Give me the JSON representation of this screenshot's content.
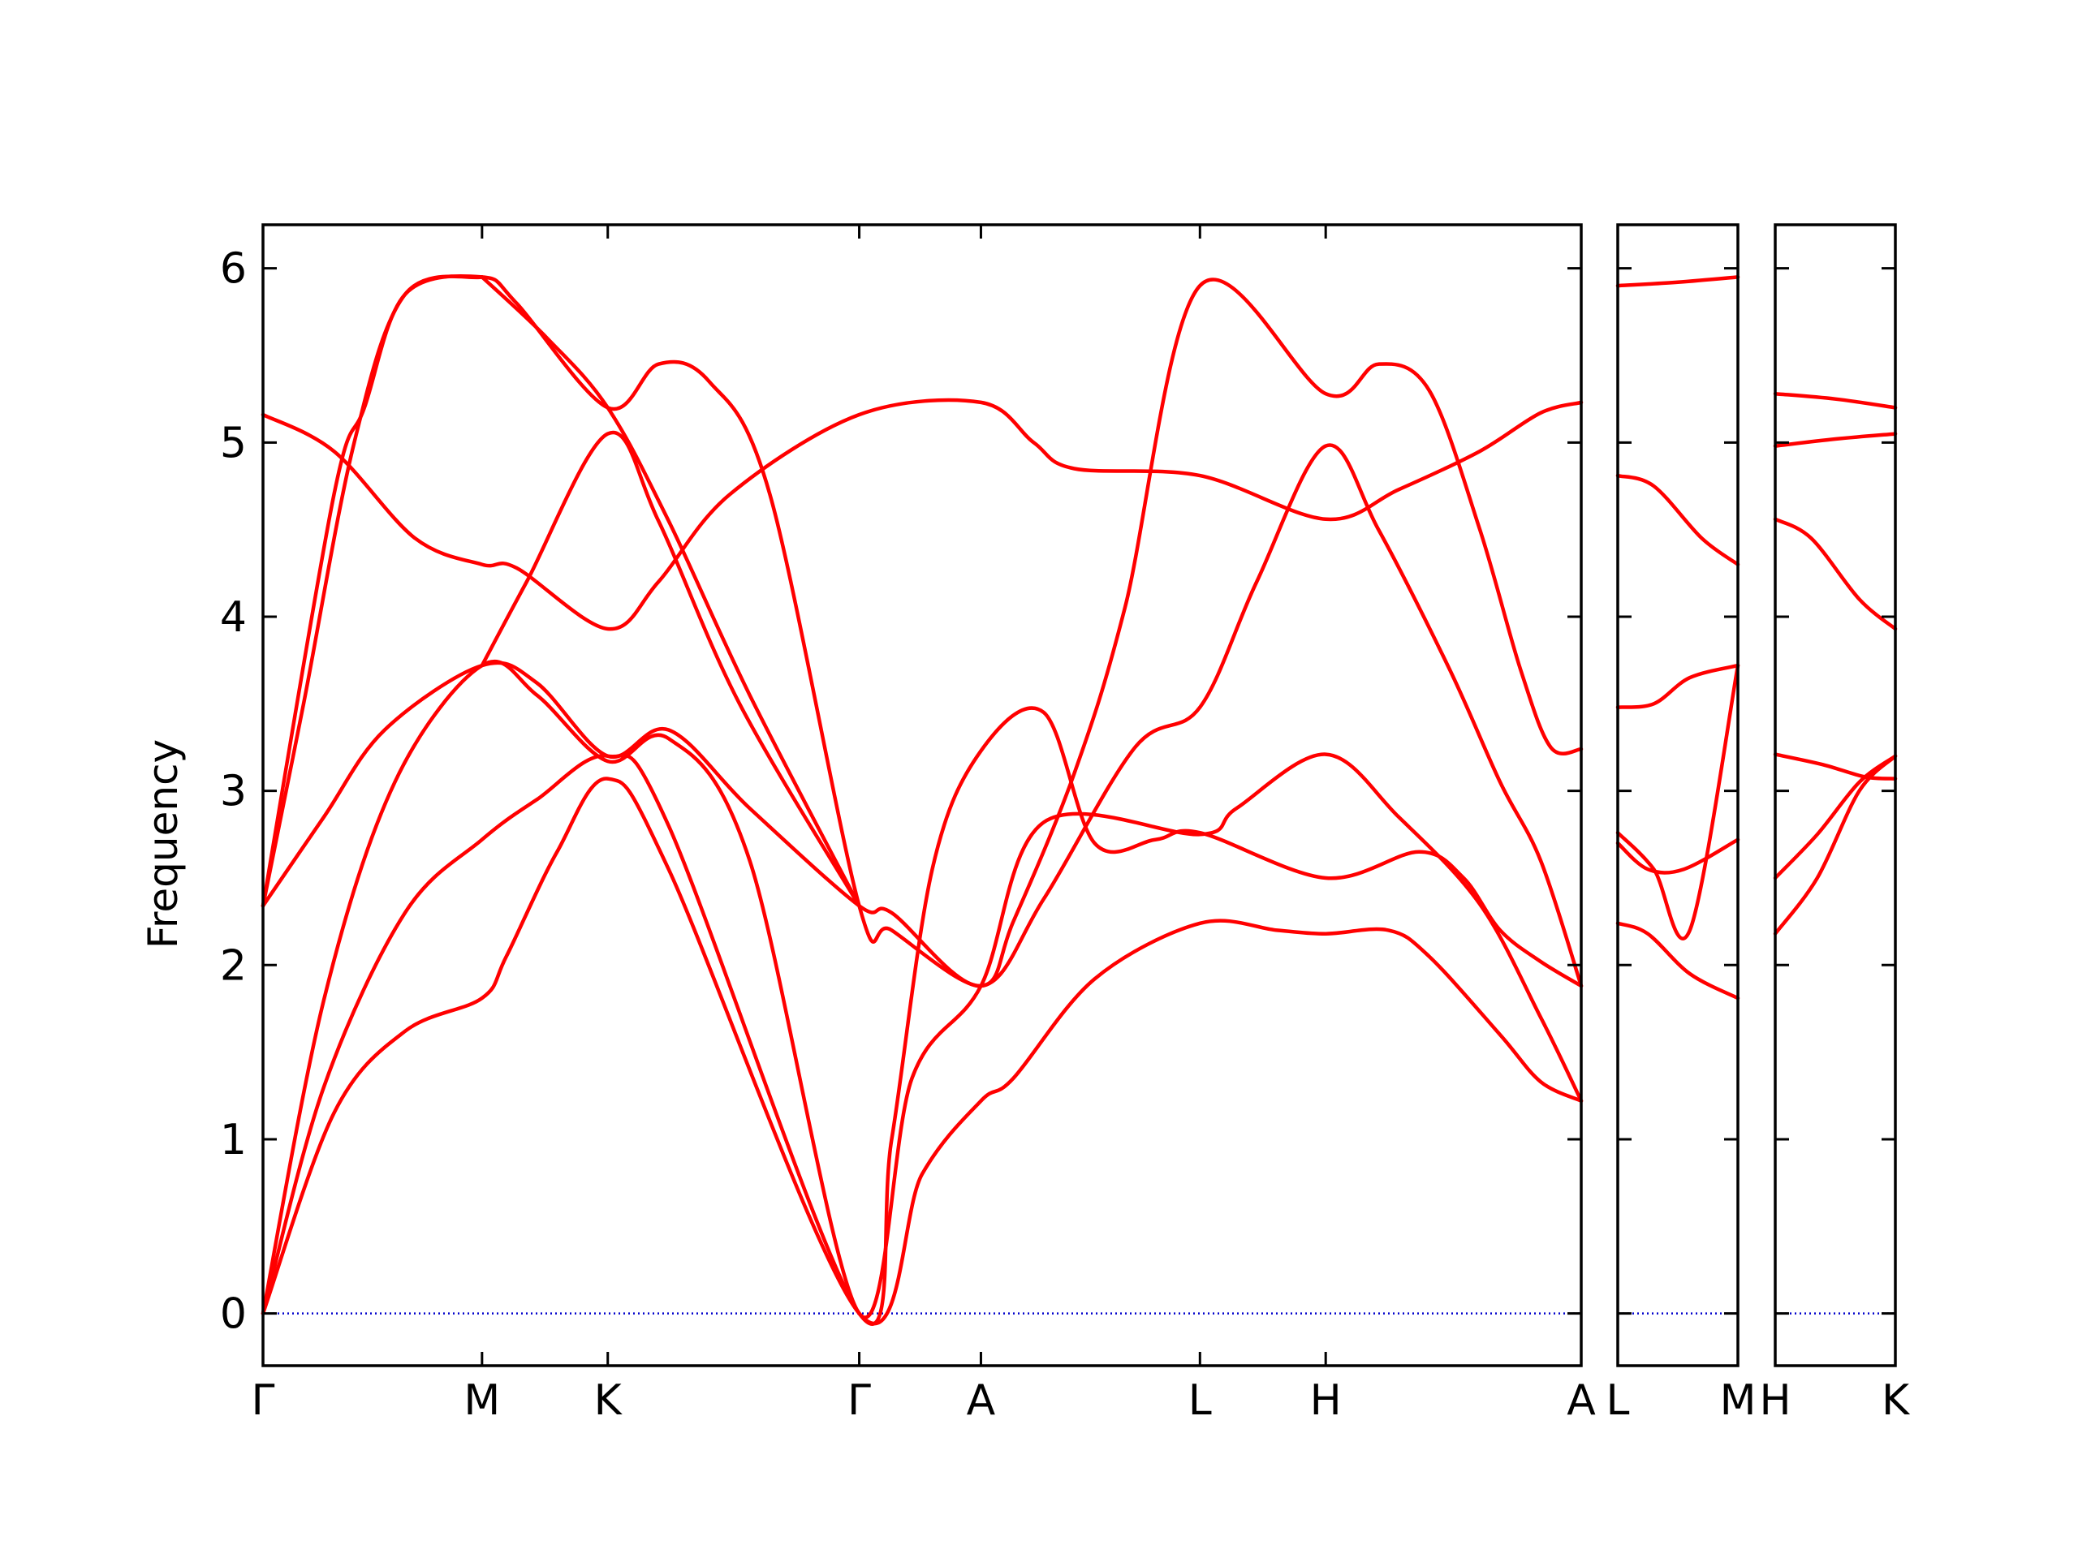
{
  "chart_data": {
    "type": "line",
    "title": "",
    "ylabel": "Frequency",
    "ylim": [
      -0.3,
      6.25
    ],
    "yticks": [
      "0",
      "1",
      "2",
      "3",
      "4",
      "5",
      "6"
    ],
    "zero_line_color": "#0000cc",
    "band_color": "#ff0000",
    "panels": [
      {
        "path": [
          "Γ",
          "M",
          "K",
          "Γ",
          "A",
          "L",
          "H",
          "A"
        ],
        "labels": [
          "Γ",
          "M",
          "K",
          "Γ",
          "A",
          "L",
          "H",
          "A"
        ],
        "xlim": [
          0,
          6.5
        ],
        "ticks": [
          0,
          1.08,
          1.7,
          2.94,
          3.54,
          4.62,
          5.24,
          6.5
        ],
        "bands": [
          {
            "name": "band-1",
            "points": [
              [
                0,
                0
              ],
              [
                0.35,
                1.15
              ],
              [
                0.7,
                1.62
              ],
              [
                1.08,
                1.81
              ],
              [
                1.2,
                2.05
              ],
              [
                1.45,
                2.65
              ],
              [
                1.7,
                3.07
              ],
              [
                2.0,
                2.55
              ],
              [
                2.94,
                0
              ],
              [
                3.25,
                0.8
              ],
              [
                3.54,
                1.22
              ],
              [
                3.7,
                1.35
              ],
              [
                4.1,
                1.92
              ],
              [
                4.62,
                2.24
              ],
              [
                5.0,
                2.2
              ],
              [
                5.24,
                2.18
              ],
              [
                5.55,
                2.2
              ],
              [
                5.75,
                2.05
              ],
              [
                6.1,
                1.6
              ],
              [
                6.3,
                1.33
              ],
              [
                6.5,
                1.22
              ]
            ]
          },
          {
            "name": "band-2",
            "points": [
              [
                0,
                0
              ],
              [
                0.3,
                1.3
              ],
              [
                0.7,
                2.3
              ],
              [
                1.08,
                2.72
              ],
              [
                1.35,
                2.95
              ],
              [
                1.7,
                3.2
              ],
              [
                2.0,
                2.8
              ],
              [
                2.94,
                0
              ],
              [
                3.1,
                1.0
              ],
              [
                3.3,
                2.55
              ],
              [
                3.54,
                3.23
              ],
              [
                3.85,
                3.45
              ],
              [
                4.1,
                2.7
              ],
              [
                4.4,
                2.72
              ],
              [
                4.62,
                2.76
              ],
              [
                5.24,
                2.5
              ],
              [
                5.7,
                2.65
              ],
              [
                5.92,
                2.5
              ],
              [
                6.1,
                2.2
              ],
              [
                6.3,
                2.02
              ],
              [
                6.5,
                1.88
              ]
            ]
          },
          {
            "name": "band-3",
            "points": [
              [
                0,
                0
              ],
              [
                0.3,
                1.8
              ],
              [
                0.65,
                3.05
              ],
              [
                1.08,
                3.72
              ],
              [
                1.35,
                3.55
              ],
              [
                1.7,
                3.17
              ],
              [
                2.0,
                3.3
              ],
              [
                2.4,
                2.6
              ],
              [
                2.94,
                0
              ],
              [
                3.2,
                1.35
              ],
              [
                3.54,
                1.88
              ],
              [
                3.85,
                2.82
              ],
              [
                4.62,
                2.75
              ],
              [
                4.8,
                2.9
              ],
              [
                5.24,
                3.21
              ],
              [
                5.6,
                2.85
              ],
              [
                6.0,
                2.35
              ],
              [
                6.3,
                1.7
              ],
              [
                6.5,
                1.22
              ]
            ]
          },
          {
            "name": "band-4",
            "points": [
              [
                0,
                2.34
              ],
              [
                0.3,
                2.85
              ],
              [
                0.6,
                3.35
              ],
              [
                1.08,
                3.72
              ],
              [
                1.35,
                3.62
              ],
              [
                1.7,
                3.2
              ],
              [
                2.0,
                3.35
              ],
              [
                2.4,
                2.9
              ],
              [
                2.94,
                2.34
              ],
              [
                3.1,
                2.3
              ],
              [
                3.54,
                1.88
              ],
              [
                3.85,
                2.38
              ],
              [
                4.3,
                3.25
              ],
              [
                4.62,
                3.48
              ],
              [
                4.9,
                4.2
              ],
              [
                5.24,
                4.98
              ],
              [
                5.5,
                4.5
              ],
              [
                5.85,
                3.7
              ],
              [
                6.1,
                3.05
              ],
              [
                6.3,
                2.6
              ],
              [
                6.5,
                1.88
              ]
            ]
          },
          {
            "name": "band-5",
            "points": [
              [
                0,
                2.34
              ],
              [
                0.35,
                4.7
              ],
              [
                0.5,
                5.2
              ],
              [
                0.7,
                5.85
              ],
              [
                1.08,
                5.95
              ],
              [
                1.25,
                5.8
              ],
              [
                1.7,
                5.2
              ],
              [
                1.95,
                5.45
              ],
              [
                2.2,
                5.35
              ],
              [
                2.5,
                4.7
              ],
              [
                2.94,
                2.34
              ],
              [
                3.1,
                2.2
              ],
              [
                3.54,
                1.88
              ],
              [
                3.7,
                2.25
              ],
              [
                4.0,
                3.1
              ],
              [
                4.25,
                4.05
              ],
              [
                4.62,
                5.9
              ],
              [
                5.24,
                5.28
              ],
              [
                5.5,
                5.45
              ],
              [
                5.75,
                5.3
              ],
              [
                6.0,
                4.5
              ],
              [
                6.2,
                3.7
              ],
              [
                6.35,
                3.25
              ],
              [
                6.5,
                3.24
              ]
            ]
          },
          {
            "name": "band-6",
            "points": [
              [
                0,
                5.16
              ],
              [
                0.35,
                4.95
              ],
              [
                0.75,
                4.45
              ],
              [
                1.08,
                4.3
              ],
              [
                1.25,
                4.28
              ],
              [
                1.7,
                3.93
              ],
              [
                1.95,
                4.2
              ],
              [
                2.3,
                4.7
              ],
              [
                2.94,
                5.16
              ],
              [
                3.54,
                5.23
              ],
              [
                3.8,
                5.0
              ],
              [
                4.0,
                4.85
              ],
              [
                4.62,
                4.81
              ],
              [
                5.24,
                4.56
              ],
              [
                5.6,
                4.73
              ],
              [
                6.0,
                4.95
              ],
              [
                6.3,
                5.17
              ],
              [
                6.5,
                5.23
              ]
            ]
          },
          {
            "name": "band-7",
            "points": [
              [
                0,
                2.34
              ],
              [
                0.2,
                3.5
              ],
              [
                0.45,
                5.0
              ],
              [
                0.7,
                5.85
              ],
              [
                1.08,
                5.95
              ]
            ]
          },
          {
            "name": "band-8",
            "points": [
              [
                1.08,
                5.95
              ],
              [
                1.4,
                5.6
              ],
              [
                1.7,
                5.2
              ],
              [
                2.0,
                4.55
              ],
              [
                2.4,
                3.55
              ],
              [
                2.94,
                2.34
              ]
            ]
          },
          {
            "name": "band-9",
            "points": [
              [
                1.08,
                3.72
              ],
              [
                1.3,
                4.2
              ],
              [
                1.7,
                5.05
              ],
              [
                1.95,
                4.55
              ],
              [
                2.35,
                3.5
              ],
              [
                2.94,
                2.34
              ]
            ]
          }
        ]
      },
      {
        "path": [
          "L",
          "M"
        ],
        "labels": [
          "L",
          "M"
        ],
        "xlim": [
          0,
          1
        ],
        "ticks": [
          0,
          1
        ],
        "bands": [
          {
            "name": "band-1",
            "points": [
              [
                0,
                2.24
              ],
              [
                0.25,
                2.18
              ],
              [
                0.6,
                1.95
              ],
              [
                1,
                1.81
              ]
            ]
          },
          {
            "name": "band-2",
            "points": [
              [
                0,
                2.7
              ],
              [
                0.25,
                2.55
              ],
              [
                0.55,
                2.55
              ],
              [
                1,
                2.72
              ]
            ]
          },
          {
            "name": "band-3",
            "points": [
              [
                0,
                2.76
              ],
              [
                0.3,
                2.55
              ],
              [
                0.6,
                2.2
              ],
              [
                1,
                3.72
              ]
            ]
          },
          {
            "name": "band-4",
            "points": [
              [
                0,
                3.48
              ],
              [
                0.3,
                3.5
              ],
              [
                0.6,
                3.65
              ],
              [
                1,
                3.72
              ]
            ]
          },
          {
            "name": "band-5",
            "points": [
              [
                0,
                4.81
              ],
              [
                0.3,
                4.75
              ],
              [
                0.7,
                4.45
              ],
              [
                1,
                4.3
              ]
            ]
          },
          {
            "name": "band-6",
            "points": [
              [
                0,
                5.9
              ],
              [
                0.5,
                5.92
              ],
              [
                1,
                5.95
              ]
            ]
          }
        ]
      },
      {
        "path": [
          "H",
          "K"
        ],
        "labels": [
          "H",
          "K"
        ],
        "xlim": [
          0,
          1
        ],
        "ticks": [
          0,
          1
        ],
        "bands": [
          {
            "name": "band-1",
            "points": [
              [
                0,
                2.18
              ],
              [
                0.35,
                2.5
              ],
              [
                0.7,
                3.0
              ],
              [
                1,
                3.2
              ]
            ]
          },
          {
            "name": "band-2",
            "points": [
              [
                0,
                2.5
              ],
              [
                0.35,
                2.75
              ],
              [
                0.7,
                3.05
              ],
              [
                1,
                3.2
              ]
            ]
          },
          {
            "name": "band-3",
            "points": [
              [
                0,
                3.21
              ],
              [
                0.4,
                3.15
              ],
              [
                0.75,
                3.08
              ],
              [
                1,
                3.07
              ]
            ]
          },
          {
            "name": "band-4",
            "points": [
              [
                0,
                4.56
              ],
              [
                0.3,
                4.45
              ],
              [
                0.7,
                4.1
              ],
              [
                1,
                3.93
              ]
            ]
          },
          {
            "name": "band-5",
            "points": [
              [
                0,
                4.98
              ],
              [
                0.5,
                5.02
              ],
              [
                1,
                5.05
              ]
            ]
          },
          {
            "name": "band-6",
            "points": [
              [
                0,
                5.28
              ],
              [
                0.5,
                5.25
              ],
              [
                1,
                5.2
              ]
            ]
          }
        ]
      }
    ]
  }
}
